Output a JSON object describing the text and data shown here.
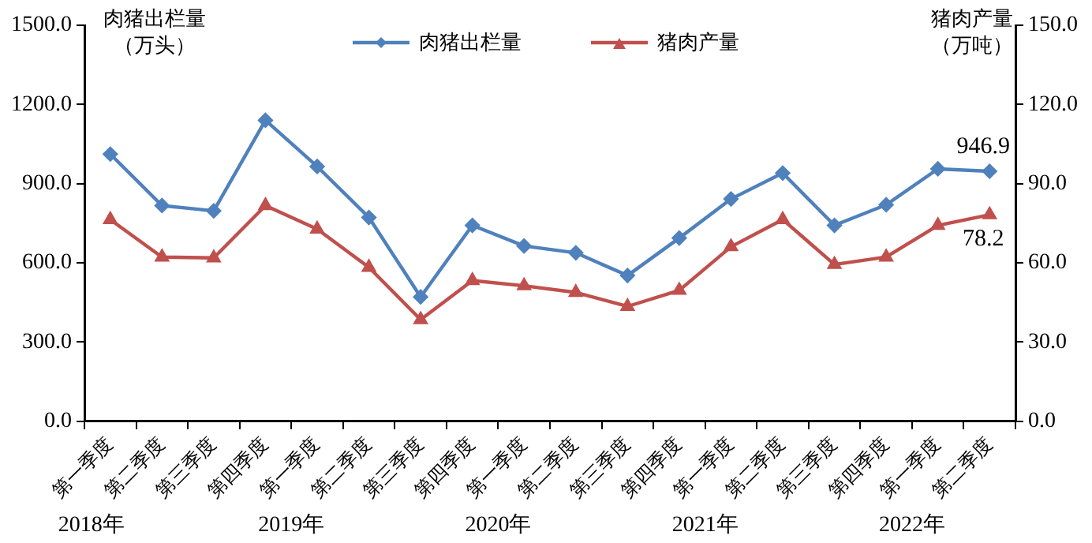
{
  "chart_data": {
    "type": "line",
    "categories": [
      "第一季度",
      "第二季度",
      "第三季度",
      "第四季度",
      "第一季度",
      "第二季度",
      "第三季度",
      "第四季度",
      "第一季度",
      "第二季度",
      "第三季度",
      "第四季度",
      "第一季度",
      "第二季度",
      "第三季度",
      "第四季度",
      "第一季度",
      "第二季度"
    ],
    "series": [
      {
        "name": "肉猪出栏量",
        "color": "#4f81bd",
        "marker": "diamond",
        "values": [
          1012,
          817,
          797,
          1140,
          965,
          772,
          471,
          742,
          664,
          638,
          552,
          694,
          842,
          940,
          742,
          820,
          956,
          946.9
        ],
        "value_labels": [
          null,
          null,
          null,
          null,
          null,
          null,
          null,
          null,
          null,
          null,
          null,
          null,
          null,
          null,
          null,
          null,
          null,
          "946.9"
        ]
      },
      {
        "name": "猪肉产量",
        "color": "#c0504d",
        "marker": "triangle",
        "axis": "y2",
        "values": [
          76.4,
          62.2,
          61.9,
          81.7,
          72.8,
          58.3,
          38.5,
          53.3,
          51.3,
          48.8,
          43.5,
          49.6,
          66.1,
          76.4,
          59.4,
          62.2,
          74.2,
          78.2
        ],
        "value_labels": [
          null,
          null,
          null,
          null,
          null,
          null,
          null,
          null,
          null,
          null,
          null,
          null,
          null,
          null,
          null,
          null,
          null,
          "78.2"
        ]
      }
    ],
    "ylabel": "肉猪出栏量（万头）",
    "y2label": "猪肉产量（万吨）",
    "ylim": [
      0,
      1500
    ],
    "yticks": [
      {
        "value": 0,
        "label": "0.0"
      },
      {
        "value": 300,
        "label": "300.0"
      },
      {
        "value": 600,
        "label": "600.0"
      },
      {
        "value": 900,
        "label": "900.0"
      },
      {
        "value": 1200,
        "label": "1200.0"
      },
      {
        "value": 1500,
        "label": "1500.0"
      }
    ],
    "y2lim": [
      0,
      150
    ],
    "y2ticks": [
      {
        "value": 0,
        "label": "0.0"
      },
      {
        "value": 30,
        "label": "30.0"
      },
      {
        "value": 60,
        "label": "60.0"
      },
      {
        "value": 90,
        "label": "90.0"
      },
      {
        "value": 120,
        "label": "120.0"
      },
      {
        "value": 150,
        "label": "150.0"
      }
    ],
    "annotations": [
      "2018年",
      "2019年",
      "2020年",
      "2021年",
      "2022年"
    ],
    "legend": "top",
    "grid": false,
    "line_style": "solid"
  }
}
